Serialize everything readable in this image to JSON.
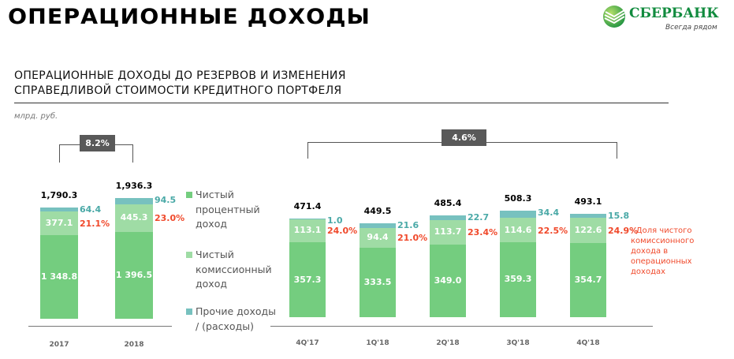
{
  "header": {
    "title": "ОПЕРАЦИОННЫЕ  ДОХОДЫ",
    "logo_text": "СБЕРБАНК",
    "logo_tagline": "Всегда рядом"
  },
  "colors": {
    "nii": "#74cd7f",
    "commission": "#9fdca5",
    "other": "#77c1bf",
    "pct": "#f0492b",
    "other_label": "#4aa9a7",
    "growth_box": "#595959"
  },
  "chart_data": [
    {
      "type": "bar",
      "stacked": true,
      "title": "ОПЕРАЦИОННЫЕ ДОХОДЫ ДО РЕЗЕРВОВ И ИЗМЕНЕНИЯ СПРАВЕДЛИВОЙ СТОИМОСТИ КРЕДИТНОГО ПОРТФЕЛЯ",
      "title_lines": [
        "ОПЕРАЦИОННЫЕ ДОХОДЫ ДО РЕЗЕРВОВ И ИЗМЕНЕНИЯ",
        "СПРАВЕДЛИВОЙ СТОИМОСТИ КРЕДИТНОГО ПОРТФЕЛЯ"
      ],
      "unit": "млрд. руб.",
      "growth": "8.2%",
      "categories": [
        "2017",
        "2018"
      ],
      "series": [
        {
          "name": "Чистый процентный доход",
          "values": [
            1348.8,
            1396.5
          ],
          "labels": [
            "1 348.8",
            "1 396.5"
          ]
        },
        {
          "name": "Чистый комиссионный доход",
          "values": [
            377.1,
            445.3
          ],
          "labels": [
            "377.1",
            "445.3"
          ]
        },
        {
          "name": "Прочие доходы / (расходы)",
          "values": [
            64.4,
            94.5
          ],
          "labels": [
            "64.4",
            "94.5"
          ]
        }
      ],
      "totals": [
        "1,790.3",
        "1,936.3"
      ],
      "commission_share": [
        "21.1%",
        "23.0%"
      ]
    },
    {
      "type": "bar",
      "stacked": true,
      "growth": "4.6%",
      "categories": [
        "4Q'17",
        "1Q'18",
        "2Q'18",
        "3Q'18",
        "4Q'18"
      ],
      "series": [
        {
          "name": "Чистый процентный доход",
          "values": [
            357.3,
            333.5,
            349.0,
            359.3,
            354.7
          ],
          "labels": [
            "357.3",
            "333.5",
            "349.0",
            "359.3",
            "354.7"
          ]
        },
        {
          "name": "Чистый комиссионный доход",
          "values": [
            113.1,
            94.4,
            113.7,
            114.6,
            122.6
          ],
          "labels": [
            "113.1",
            "94.4",
            "113.7",
            "114.6",
            "122.6"
          ]
        },
        {
          "name": "Прочие доходы / (расходы)",
          "values": [
            1.0,
            21.6,
            22.7,
            34.4,
            15.8
          ],
          "labels": [
            "1.0",
            "21.6",
            "22.7",
            "34.4",
            "15.8"
          ]
        }
      ],
      "totals": [
        "471.4",
        "449.5",
        "485.4",
        "508.3",
        "493.1"
      ],
      "commission_share": [
        "24.0%",
        "21.0%",
        "23.4%",
        "22.5%",
        "24.9%"
      ],
      "annotation": "- Доля чистого комиссионного дохода в операционных доходах"
    }
  ],
  "legend": [
    {
      "lines": [
        "Чистый",
        "процентный",
        "доход"
      ]
    },
    {
      "lines": [
        "Чистый",
        "комиссионный",
        "доход"
      ]
    },
    {
      "lines": [
        "Прочие доходы",
        "/ (расходы)"
      ]
    }
  ]
}
